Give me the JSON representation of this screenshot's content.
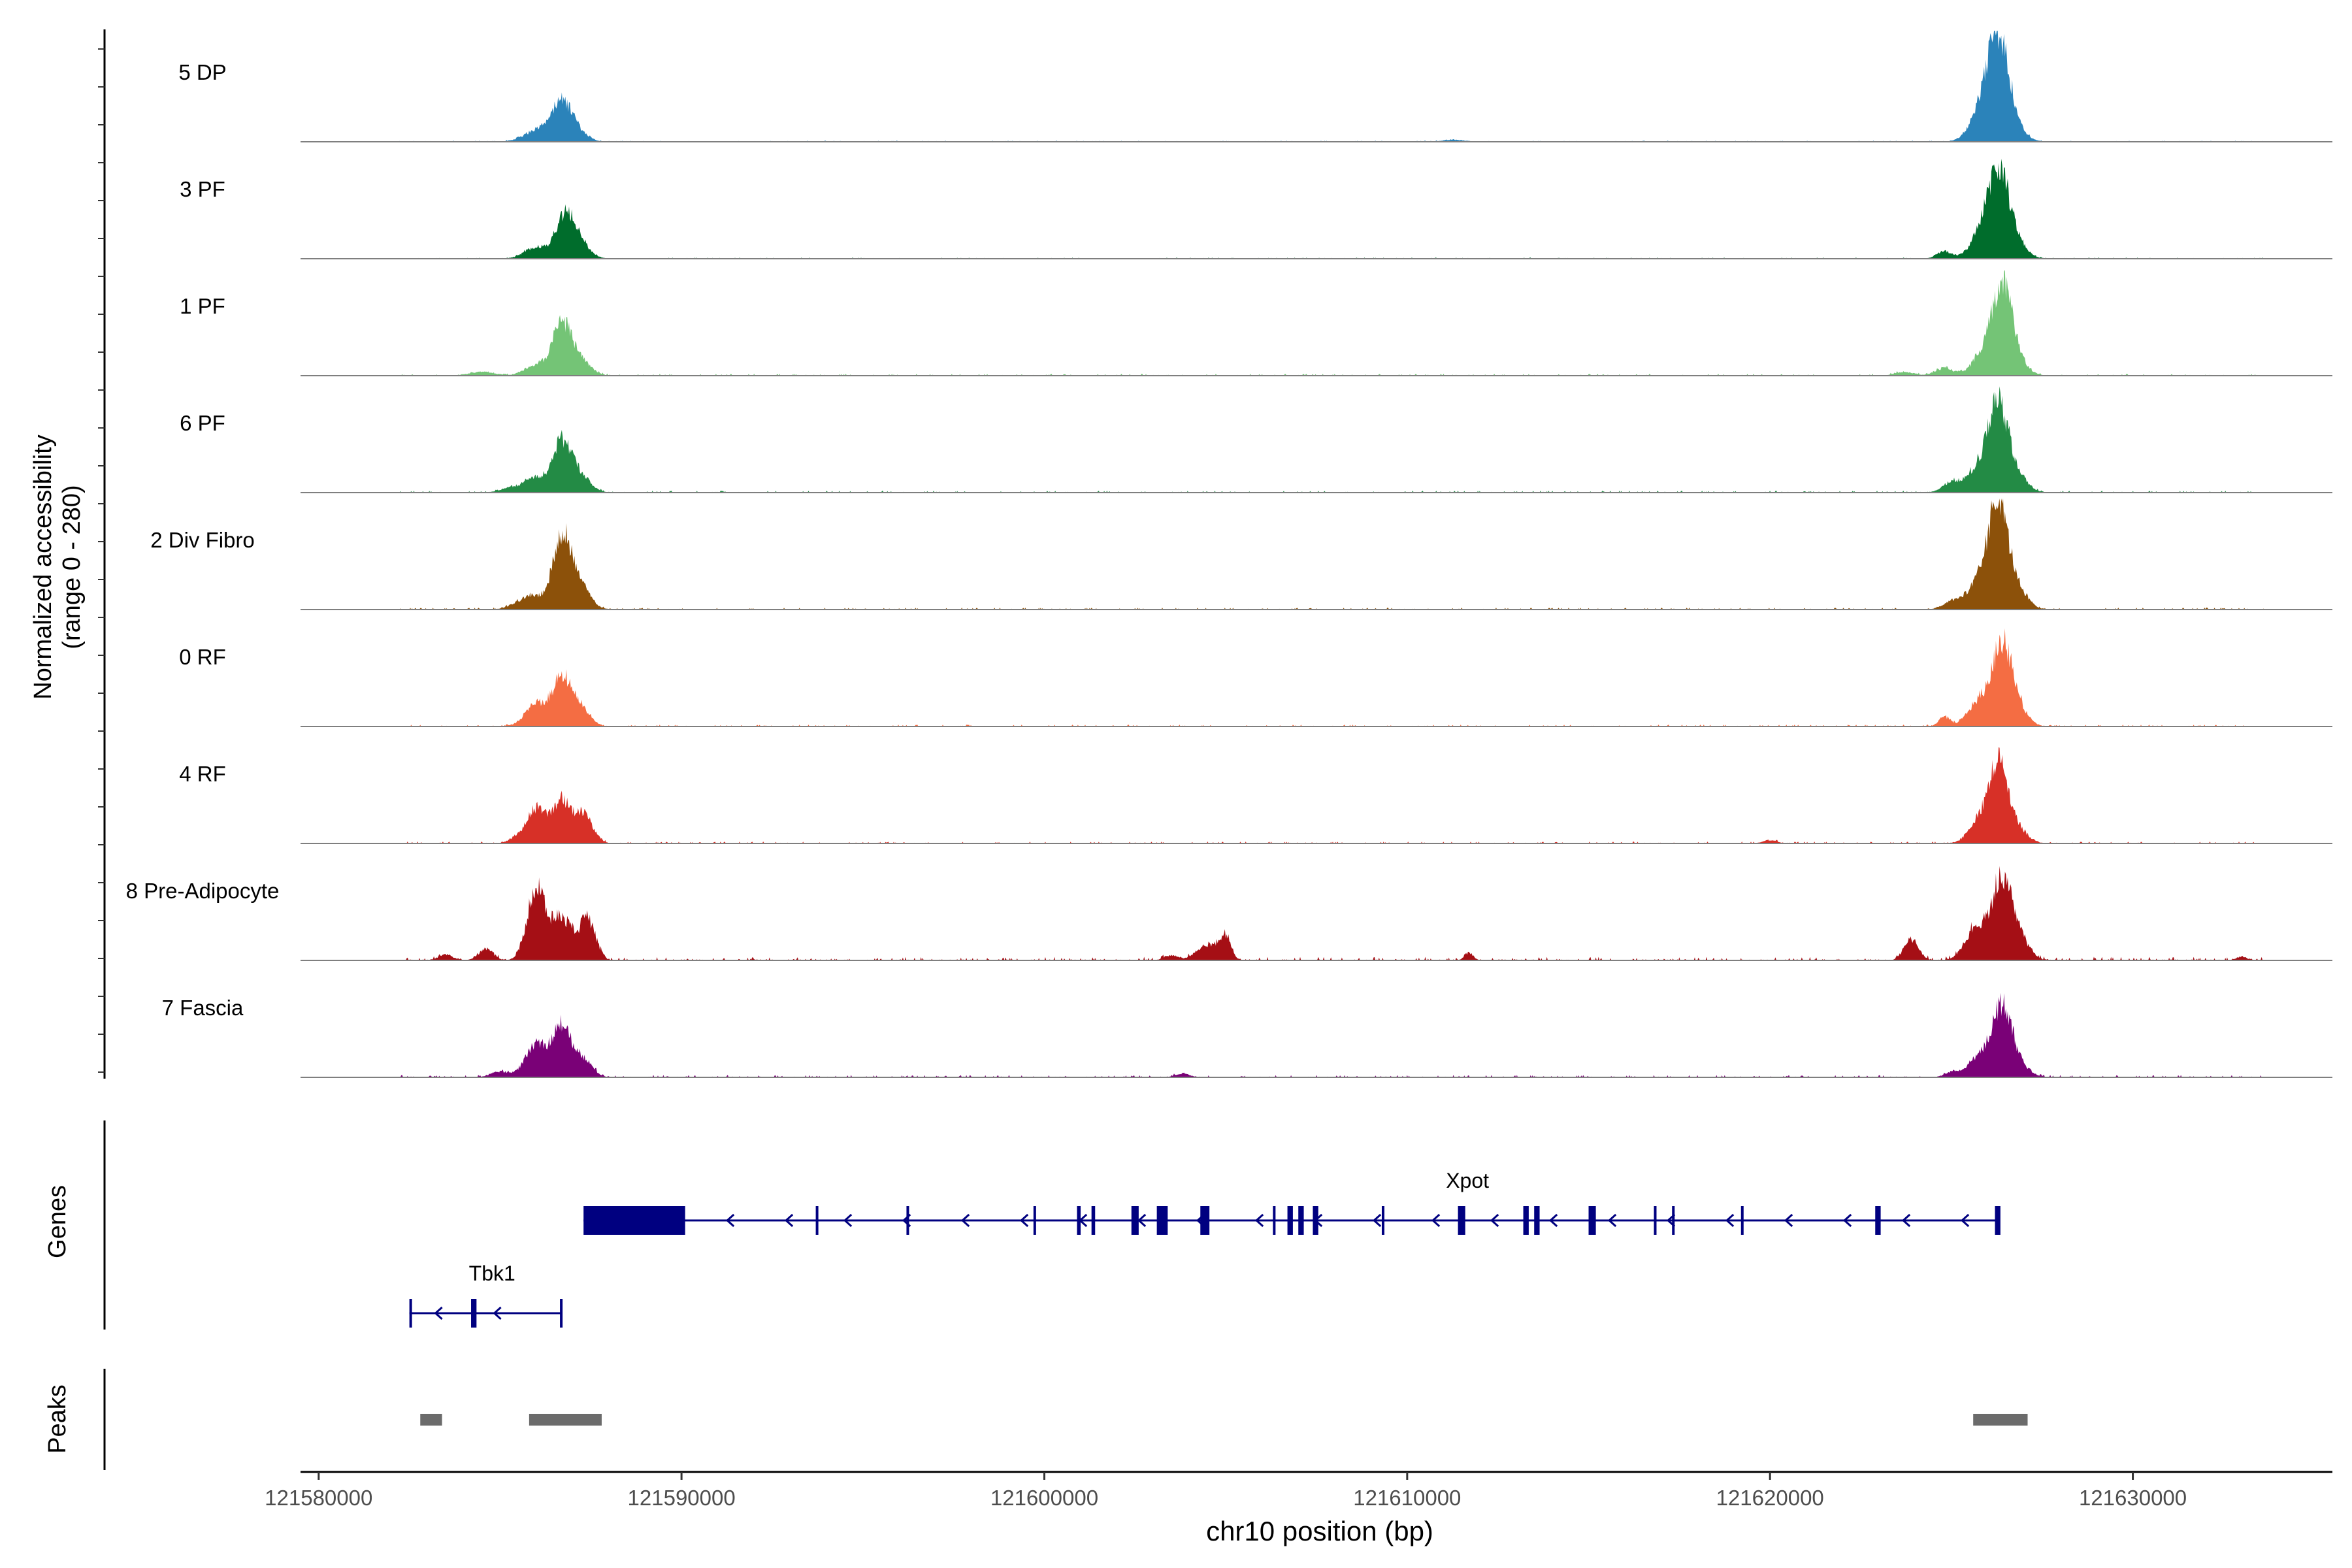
{
  "chart_data": {
    "type": "area",
    "title": "",
    "xlabel": "chr10 position (bp)",
    "ylabel": "Normalized accessibility\n(range 0 - 280)",
    "ylabel_line1": "Normalized accessibility",
    "ylabel_line2": "(range 0 - 280)",
    "ylim": [
      0,
      280
    ],
    "xlim": [
      121579500,
      121635500
    ],
    "x_ticks": [
      121580000,
      121590000,
      121600000,
      121610000,
      121620000,
      121630000
    ],
    "x_tick_labels": [
      "121580000",
      "121590000",
      "121600000",
      "121610000",
      "121620000",
      "121630000"
    ],
    "panel_labels": {
      "genes": "Genes",
      "peaks": "Peaks"
    },
    "series": [
      {
        "name": "5 DP",
        "color": "#2b83ba",
        "peaks": [
          [
            121586100,
            300,
            28
          ],
          [
            121586700,
            280,
            105
          ],
          [
            121587200,
            250,
            20
          ],
          [
            121585700,
            300,
            8
          ],
          [
            121626300,
            280,
            205
          ],
          [
            121626000,
            350,
            95
          ],
          [
            121626700,
            300,
            40
          ],
          [
            121625600,
            300,
            10
          ]
        ],
        "noise": 3,
        "bumps": [
          [
            121611300,
            300,
            5
          ]
        ]
      },
      {
        "name": "3 PF",
        "color": "#006d2c",
        "peaks": [
          [
            121586000,
            320,
            30
          ],
          [
            121586800,
            260,
            110
          ],
          [
            121587200,
            280,
            35
          ],
          [
            121626300,
            280,
            190
          ],
          [
            121625900,
            330,
            70
          ],
          [
            121626700,
            300,
            50
          ],
          [
            121624800,
            200,
            20
          ]
        ],
        "noise": 3,
        "bumps": []
      },
      {
        "name": "1 PF",
        "color": "#74c476",
        "peaks": [
          [
            121586000,
            300,
            30
          ],
          [
            121586700,
            250,
            135
          ],
          [
            121587200,
            280,
            40
          ],
          [
            121584500,
            350,
            10
          ],
          [
            121626400,
            260,
            215
          ],
          [
            121625900,
            300,
            60
          ],
          [
            121626800,
            280,
            40
          ],
          [
            121624800,
            250,
            20
          ],
          [
            121623700,
            250,
            10
          ]
        ],
        "noise": 5,
        "bumps": []
      },
      {
        "name": "6 PF",
        "color": "#238b45",
        "peaks": [
          [
            121586000,
            300,
            40
          ],
          [
            121586700,
            250,
            130
          ],
          [
            121587200,
            280,
            45
          ],
          [
            121585300,
            300,
            12
          ],
          [
            121626300,
            260,
            215
          ],
          [
            121625800,
            330,
            70
          ],
          [
            121626800,
            280,
            45
          ],
          [
            121625000,
            250,
            25
          ]
        ],
        "noise": 5,
        "bumps": []
      },
      {
        "name": "2 Div Fibro",
        "color": "#8c510a",
        "peaks": [
          [
            121585900,
            280,
            35
          ],
          [
            121586700,
            250,
            195
          ],
          [
            121587200,
            280,
            60
          ],
          [
            121585400,
            250,
            10
          ],
          [
            121626300,
            250,
            260
          ],
          [
            121625800,
            330,
            80
          ],
          [
            121626800,
            280,
            55
          ],
          [
            121625000,
            250,
            20
          ]
        ],
        "noise": 5,
        "bumps": []
      },
      {
        "name": "0 RF",
        "color": "#f46d43",
        "peaks": [
          [
            121586000,
            300,
            60
          ],
          [
            121586700,
            250,
            125
          ],
          [
            121587200,
            260,
            50
          ],
          [
            121626400,
            250,
            200
          ],
          [
            121625800,
            320,
            70
          ],
          [
            121626800,
            280,
            50
          ],
          [
            121624800,
            150,
            25
          ]
        ],
        "noise": 5,
        "bumps": []
      },
      {
        "name": "4 RF",
        "color": "#d73027",
        "peaks": [
          [
            121586000,
            280,
            90
          ],
          [
            121586700,
            250,
            110
          ],
          [
            121587300,
            250,
            75
          ],
          [
            121585400,
            200,
            10
          ],
          [
            121626300,
            250,
            195
          ],
          [
            121625800,
            300,
            60
          ],
          [
            121626800,
            280,
            40
          ],
          [
            121620000,
            200,
            8
          ]
        ],
        "noise": 5,
        "bumps": []
      },
      {
        "name": "8 Pre-Adipocyte",
        "color": "#a50f15",
        "peaks": [
          [
            121586000,
            250,
            190
          ],
          [
            121586700,
            260,
            115
          ],
          [
            121587400,
            220,
            110
          ],
          [
            121584600,
            200,
            30
          ],
          [
            121583500,
            200,
            15
          ],
          [
            121604500,
            300,
            40
          ],
          [
            121605000,
            150,
            60
          ],
          [
            121603500,
            200,
            12
          ],
          [
            121611700,
            120,
            20
          ],
          [
            121623900,
            200,
            55
          ],
          [
            121626400,
            270,
            210
          ],
          [
            121625700,
            300,
            90
          ],
          [
            121626900,
            260,
            50
          ],
          [
            121633000,
            150,
            10
          ]
        ],
        "noise": 9,
        "bumps": []
      },
      {
        "name": "7 Fascia",
        "color": "#7a0177",
        "peaks": [
          [
            121586000,
            300,
            85
          ],
          [
            121586700,
            250,
            135
          ],
          [
            121587300,
            250,
            45
          ],
          [
            121585000,
            250,
            15
          ],
          [
            121626400,
            260,
            180
          ],
          [
            121625800,
            320,
            55
          ],
          [
            121626900,
            260,
            30
          ],
          [
            121625000,
            200,
            12
          ],
          [
            121603800,
            200,
            10
          ]
        ],
        "noise": 6,
        "bumps": []
      }
    ],
    "genes": [
      {
        "name": "Xpot",
        "strand": "-",
        "start": 121587300,
        "end": 121626300,
        "color": "#000080",
        "exons": [
          [
            121587300,
            121590100
          ],
          [
            121593700,
            121593760
          ],
          [
            121596200,
            121596260
          ],
          [
            121599700,
            121599760
          ],
          [
            121600900,
            121601000
          ],
          [
            121601300,
            121601400
          ],
          [
            121602400,
            121602600
          ],
          [
            121603100,
            121603400
          ],
          [
            121604300,
            121604550
          ],
          [
            121606300,
            121606360
          ],
          [
            121606700,
            121606850
          ],
          [
            121607000,
            121607150
          ],
          [
            121607400,
            121607550
          ],
          [
            121609300,
            121609360
          ],
          [
            121611400,
            121611600
          ],
          [
            121613200,
            121613350
          ],
          [
            121613500,
            121613650
          ],
          [
            121615000,
            121615200
          ],
          [
            121616800,
            121616860
          ],
          [
            121617300,
            121617360
          ],
          [
            121619200,
            121619260
          ],
          [
            121622900,
            121623050
          ],
          [
            121626200,
            121626350
          ]
        ]
      },
      {
        "name": "Tbk1",
        "strand": "-",
        "start": 121582500,
        "end": 121586700,
        "color": "#000080",
        "exons": [
          [
            121582500,
            121582560
          ],
          [
            121584200,
            121584350
          ],
          [
            121586650,
            121586720
          ]
        ]
      }
    ],
    "peak_regions": [
      [
        121582800,
        121583400
      ],
      [
        121585800,
        121587800
      ],
      [
        121625600,
        121627100
      ]
    ]
  }
}
